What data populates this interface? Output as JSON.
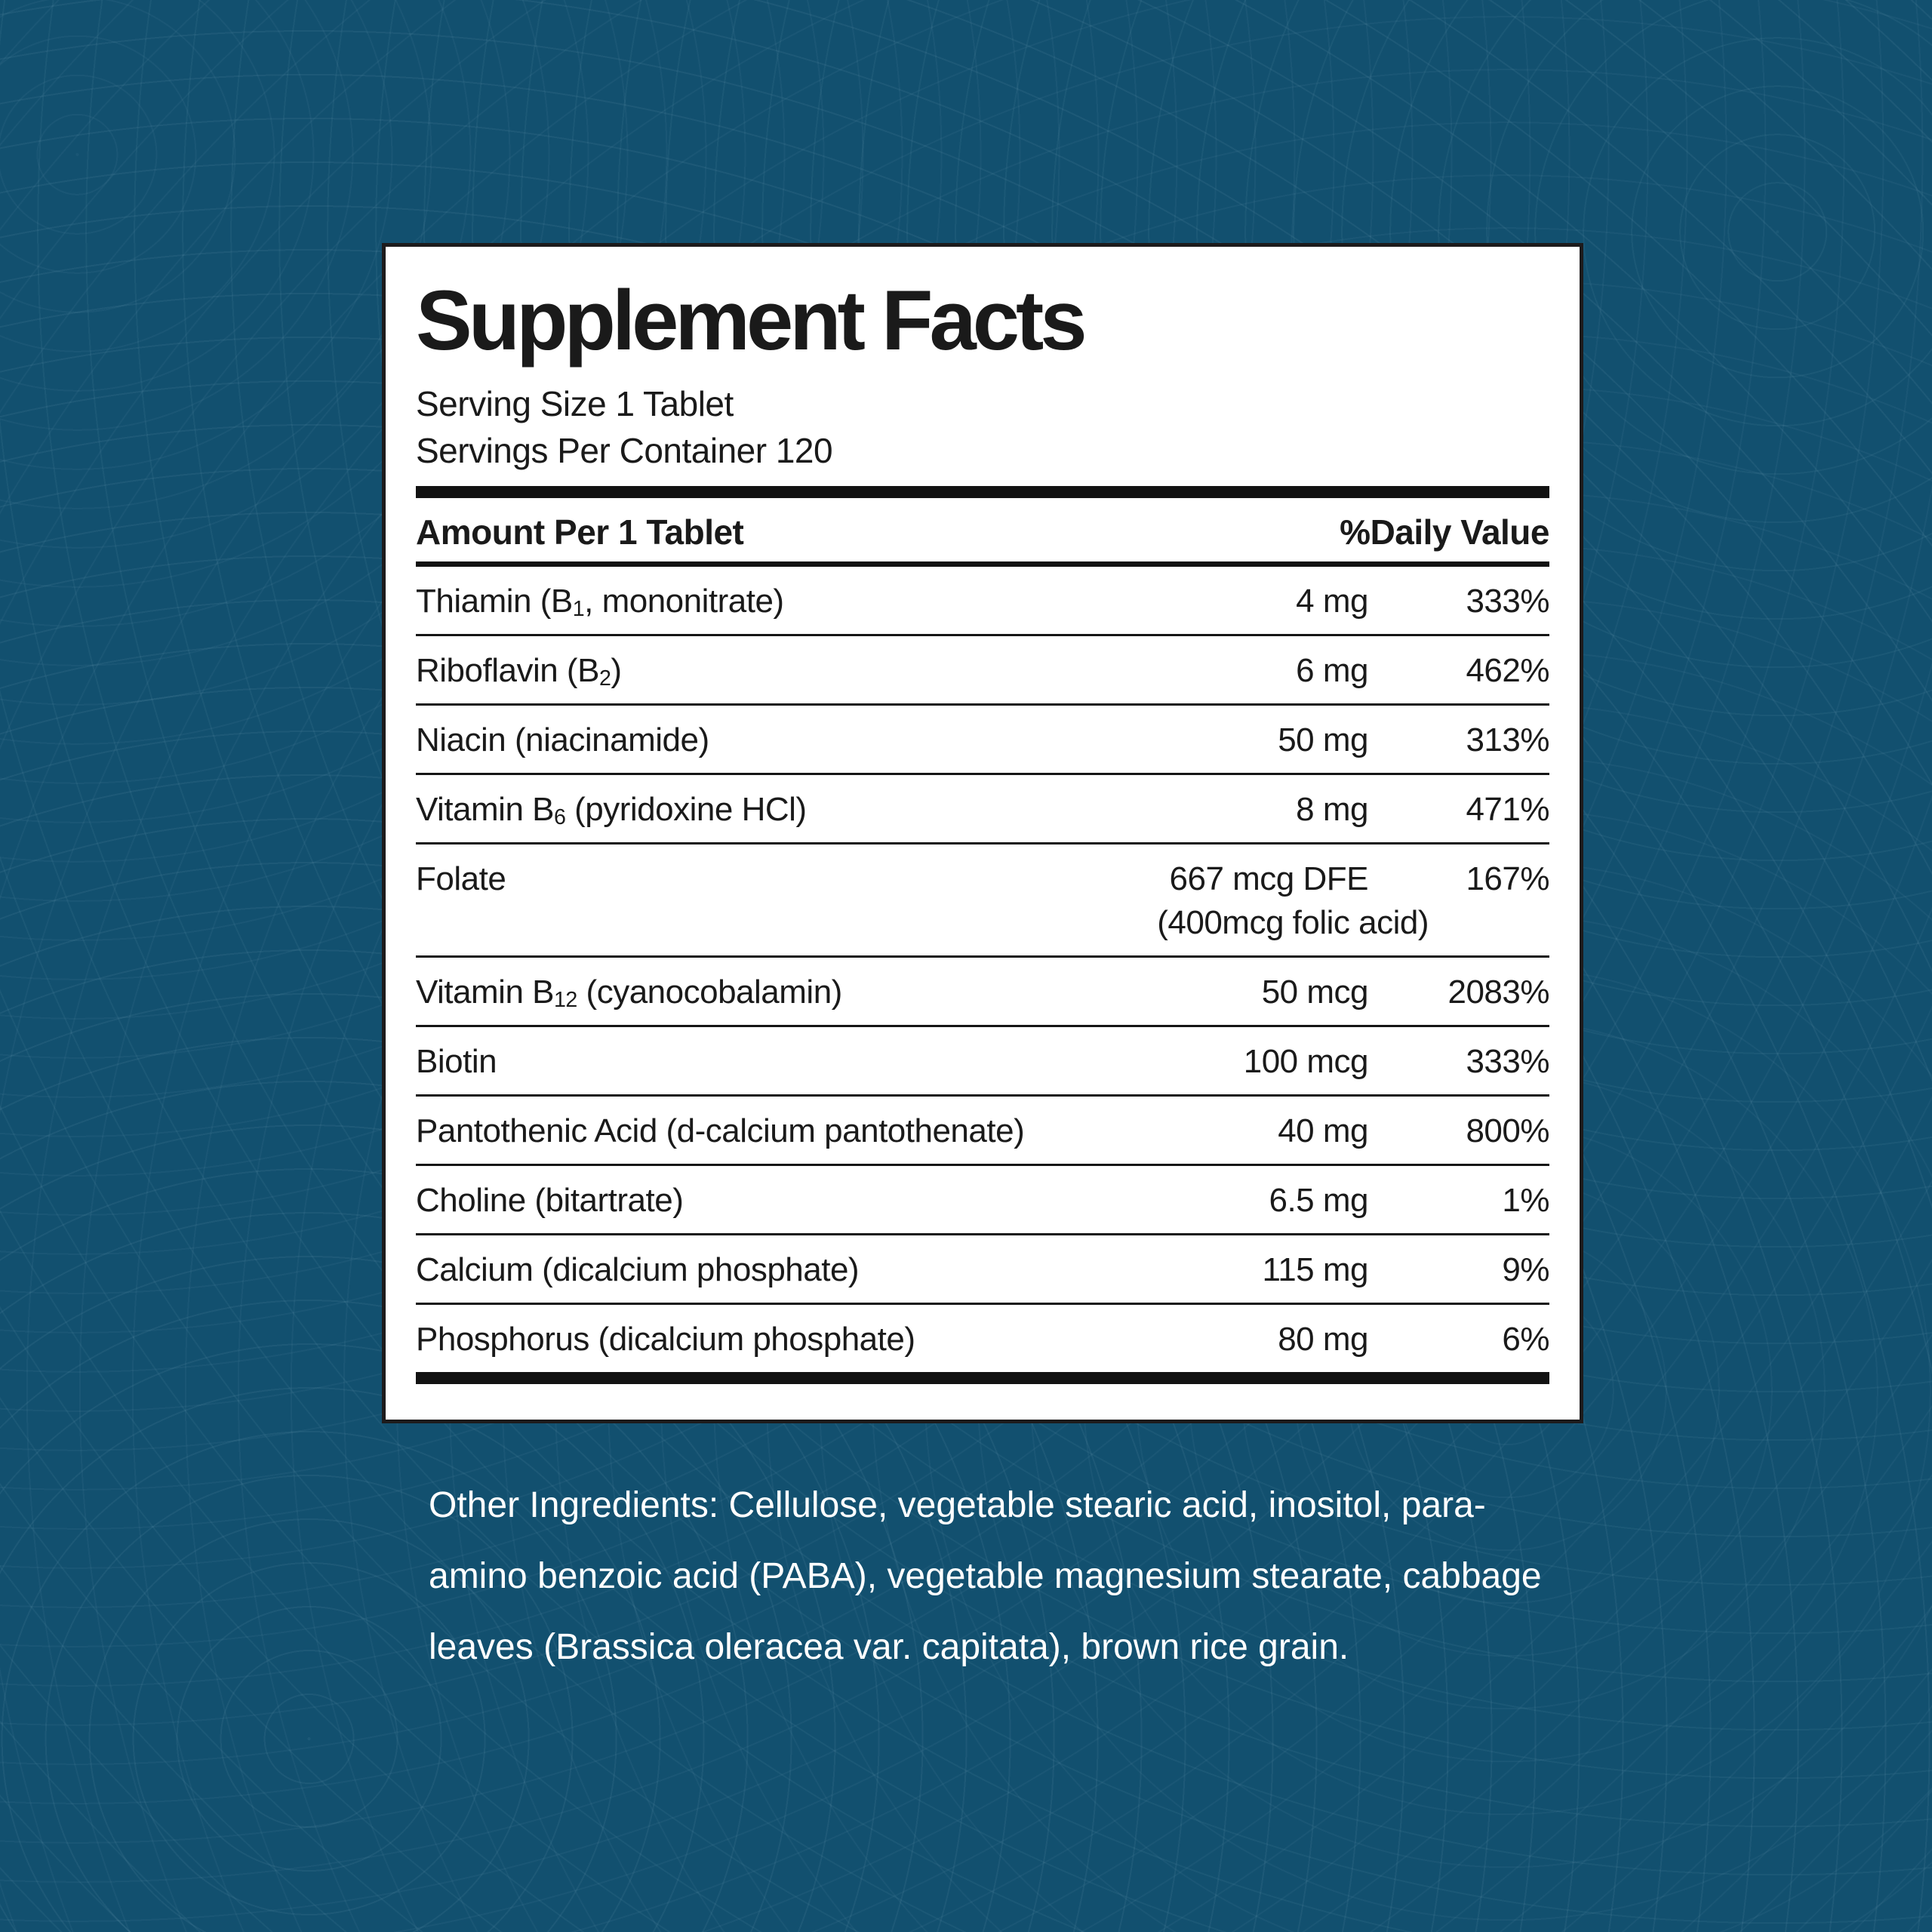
{
  "colors": {
    "page_background": "#12506f",
    "pattern_line": "#add0e2",
    "panel_background": "#ffffff",
    "panel_border": "#1d1b1c",
    "panel_text": "#1a1a1a",
    "other_ingredients_text": "#ffffff"
  },
  "panel": {
    "title": "Supplement Facts",
    "serving_size": "Serving Size 1 Tablet",
    "servings_per_container": "Servings Per Container 120",
    "columns": {
      "amount": "Amount Per 1 Tablet",
      "daily_value": "%Daily Value"
    },
    "rows": [
      {
        "name": [
          {
            "text": "Thiamin (B"
          },
          {
            "text": "1",
            "sub": true
          },
          {
            "text": ", mononitrate)"
          }
        ],
        "amount": "4 mg",
        "daily_value": "333%"
      },
      {
        "name": [
          {
            "text": "Riboflavin (B"
          },
          {
            "text": "2",
            "sub": true
          },
          {
            "text": ")"
          }
        ],
        "amount": "6 mg",
        "daily_value": "462%"
      },
      {
        "name": [
          {
            "text": "Niacin (niacinamide)"
          }
        ],
        "amount": "50 mg",
        "daily_value": "313%"
      },
      {
        "name": [
          {
            "text": "Vitamin B"
          },
          {
            "text": "6",
            "sub": true
          },
          {
            "text": " (pyridoxine HCl)"
          }
        ],
        "amount": "8 mg",
        "daily_value": "471%"
      },
      {
        "name": [
          {
            "text": "Folate"
          }
        ],
        "amount": "667 mcg DFE",
        "daily_value": "167%",
        "note": "(400mcg folic acid)"
      },
      {
        "name": [
          {
            "text": "Vitamin B"
          },
          {
            "text": "12",
            "sub": true
          },
          {
            "text": " (cyanocobalamin)"
          }
        ],
        "amount": "50 mcg",
        "daily_value": "2083%"
      },
      {
        "name": [
          {
            "text": "Biotin"
          }
        ],
        "amount": "100 mcg",
        "daily_value": "333%"
      },
      {
        "name": [
          {
            "text": "Pantothenic Acid (d-calcium pantothenate)"
          }
        ],
        "amount": "40 mg",
        "daily_value": "800%"
      },
      {
        "name": [
          {
            "text": "Choline (bitartrate)"
          }
        ],
        "amount": "6.5 mg",
        "daily_value": "1%"
      },
      {
        "name": [
          {
            "text": "Calcium (dicalcium phosphate)"
          }
        ],
        "amount": "115 mg",
        "daily_value": "9%"
      },
      {
        "name": [
          {
            "text": "Phosphorus (dicalcium phosphate)"
          }
        ],
        "amount": "80 mg",
        "daily_value": "6%"
      }
    ]
  },
  "other_ingredients": "Other Ingredients: Cellulose, vegetable stearic acid, inositol, para-amino benzoic acid (PABA), vegetable magnesium stearate, cabbage leaves (Brassica oleracea var. capitata), brown rice grain."
}
